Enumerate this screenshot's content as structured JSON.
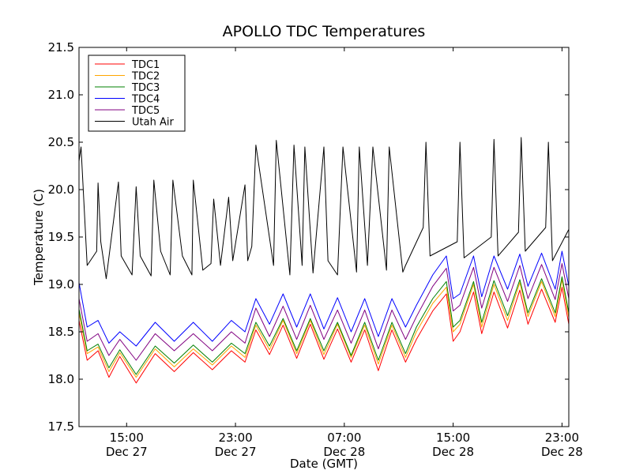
{
  "chart_data": {
    "type": "line",
    "title": "APOLLO TDC Temperatures",
    "xlabel": "Date (GMT)",
    "ylabel": "Temperature (C)",
    "ylim": [
      17.5,
      21.5
    ],
    "xlim_hours": [
      0,
      36
    ],
    "grid": false,
    "legend_position": "top-left",
    "y_ticks": [
      17.5,
      18.0,
      18.5,
      19.0,
      19.5,
      20.0,
      20.5,
      21.0,
      21.5
    ],
    "y_tick_labels": [
      "17.5",
      "18.0",
      "18.5",
      "19.0",
      "19.5",
      "20.0",
      "20.5",
      "21.0",
      "21.5"
    ],
    "x_ticks": [
      {
        "hour": 3.5,
        "time": "15:00",
        "date": "Dec 27"
      },
      {
        "hour": 11.5,
        "time": "23:00",
        "date": "Dec 27"
      },
      {
        "hour": 19.5,
        "time": "07:00",
        "date": "Dec 28"
      },
      {
        "hour": 27.5,
        "time": "15:00",
        "date": "Dec 28"
      },
      {
        "hour": 35.5,
        "time": "23:00",
        "date": "Dec 28"
      }
    ],
    "x_unit": "hours since Dec 27 11:30 GMT",
    "series": [
      {
        "name": "TDC1",
        "color": "#ff0000",
        "x": [
          0,
          0.6,
          1.4,
          2.2,
          3.0,
          4.2,
          5.6,
          7.0,
          8.4,
          9.8,
          11.2,
          12.2,
          13.0,
          14.0,
          15.0,
          16.0,
          17.0,
          18.0,
          19.0,
          20.0,
          21.0,
          22.0,
          23.0,
          24.0,
          24.8,
          26.0,
          27.0,
          27.5,
          28.0,
          29.0,
          29.6,
          30.5,
          31.5,
          32.4,
          33.0,
          34.0,
          35.0,
          35.5,
          36.0
        ],
        "values": [
          18.62,
          18.2,
          18.3,
          18.02,
          18.24,
          17.96,
          18.27,
          18.08,
          18.28,
          18.1,
          18.3,
          18.18,
          18.52,
          18.26,
          18.57,
          18.22,
          18.58,
          18.21,
          18.53,
          18.18,
          18.52,
          18.09,
          18.52,
          18.18,
          18.42,
          18.72,
          18.9,
          18.4,
          18.5,
          18.92,
          18.48,
          18.92,
          18.54,
          18.94,
          18.58,
          18.95,
          18.6,
          18.97,
          18.58
        ]
      },
      {
        "name": "TDC2",
        "color": "#ffa500",
        "x": [
          0,
          0.6,
          1.4,
          2.2,
          3.0,
          4.2,
          5.6,
          7.0,
          8.4,
          9.8,
          11.2,
          12.2,
          13.0,
          14.0,
          15.0,
          16.0,
          17.0,
          18.0,
          19.0,
          20.0,
          21.0,
          22.0,
          23.0,
          24.0,
          24.8,
          26.0,
          27.0,
          27.5,
          28.0,
          29.0,
          29.6,
          30.5,
          31.5,
          32.4,
          33.0,
          34.0,
          35.0,
          35.5,
          36.0
        ],
        "values": [
          18.7,
          18.27,
          18.34,
          18.08,
          18.28,
          18.02,
          18.32,
          18.13,
          18.32,
          18.15,
          18.35,
          18.23,
          18.57,
          18.31,
          18.62,
          18.27,
          18.62,
          18.26,
          18.58,
          18.23,
          18.57,
          18.16,
          18.57,
          18.23,
          18.5,
          18.8,
          18.97,
          18.5,
          18.58,
          19.0,
          18.55,
          19.0,
          18.62,
          19.02,
          18.66,
          19.03,
          18.66,
          19.05,
          18.65
        ]
      },
      {
        "name": "TDC3",
        "color": "#008000",
        "x": [
          0,
          0.6,
          1.4,
          2.2,
          3.0,
          4.2,
          5.6,
          7.0,
          8.4,
          9.8,
          11.2,
          12.2,
          13.0,
          14.0,
          15.0,
          16.0,
          17.0,
          18.0,
          19.0,
          20.0,
          21.0,
          22.0,
          23.0,
          24.0,
          24.8,
          26.0,
          27.0,
          27.5,
          28.0,
          29.0,
          29.6,
          30.5,
          31.5,
          32.4,
          33.0,
          34.0,
          35.0,
          35.5,
          36.0
        ],
        "values": [
          18.74,
          18.3,
          18.37,
          18.12,
          18.31,
          18.05,
          18.35,
          18.17,
          18.36,
          18.18,
          18.38,
          18.27,
          18.6,
          18.35,
          18.64,
          18.3,
          18.64,
          18.3,
          18.6,
          18.25,
          18.6,
          18.2,
          18.6,
          18.27,
          18.55,
          18.85,
          19.03,
          18.55,
          18.62,
          19.03,
          18.6,
          19.04,
          18.67,
          19.05,
          18.7,
          19.06,
          18.7,
          19.08,
          18.7
        ]
      },
      {
        "name": "TDC4",
        "color": "#0000ff",
        "x": [
          0,
          0.6,
          1.4,
          2.2,
          3.0,
          4.2,
          5.6,
          7.0,
          8.4,
          9.8,
          11.2,
          12.2,
          13.0,
          14.0,
          15.0,
          16.0,
          17.0,
          18.0,
          19.0,
          20.0,
          21.0,
          22.0,
          23.0,
          24.0,
          24.8,
          26.0,
          27.0,
          27.5,
          28.0,
          29.0,
          29.6,
          30.5,
          31.5,
          32.4,
          33.0,
          34.0,
          35.0,
          35.5,
          36.0
        ],
        "values": [
          19.02,
          18.55,
          18.62,
          18.38,
          18.5,
          18.35,
          18.6,
          18.4,
          18.6,
          18.4,
          18.62,
          18.5,
          18.85,
          18.58,
          18.9,
          18.55,
          18.9,
          18.53,
          18.86,
          18.5,
          18.85,
          18.45,
          18.85,
          18.55,
          18.78,
          19.1,
          19.3,
          18.85,
          18.9,
          19.3,
          18.87,
          19.3,
          18.95,
          19.32,
          18.98,
          19.33,
          18.95,
          19.35,
          18.98
        ]
      },
      {
        "name": "TDC5",
        "color": "#800080",
        "x": [
          0,
          0.6,
          1.4,
          2.2,
          3.0,
          4.2,
          5.6,
          7.0,
          8.4,
          9.8,
          11.2,
          12.2,
          13.0,
          14.0,
          15.0,
          16.0,
          17.0,
          18.0,
          19.0,
          20.0,
          21.0,
          22.0,
          23.0,
          24.0,
          24.8,
          26.0,
          27.0,
          27.5,
          28.0,
          29.0,
          29.6,
          30.5,
          31.5,
          32.4,
          33.0,
          34.0,
          35.0,
          35.5,
          36.0
        ],
        "values": [
          18.85,
          18.4,
          18.48,
          18.25,
          18.42,
          18.2,
          18.48,
          18.3,
          18.48,
          18.3,
          18.5,
          18.38,
          18.75,
          18.45,
          18.77,
          18.42,
          18.78,
          18.42,
          18.73,
          18.38,
          18.73,
          18.32,
          18.73,
          18.42,
          18.66,
          18.98,
          19.17,
          18.72,
          18.78,
          19.18,
          18.75,
          19.18,
          18.82,
          19.2,
          18.85,
          19.21,
          18.84,
          19.22,
          18.85
        ]
      },
      {
        "name": "Utah Air",
        "color": "#000000",
        "x": [
          0,
          0.15,
          0.6,
          1.3,
          1.4,
          1.6,
          2.0,
          2.9,
          3.1,
          3.9,
          4.2,
          4.5,
          5.3,
          5.5,
          6.0,
          6.7,
          6.9,
          7.6,
          8.3,
          8.4,
          9.1,
          9.7,
          9.9,
          10.4,
          11.0,
          11.3,
          12.2,
          12.4,
          12.7,
          13.0,
          14.3,
          14.5,
          15.5,
          15.8,
          16.4,
          16.6,
          17.2,
          18.0,
          18.3,
          19.0,
          19.4,
          20.4,
          20.6,
          21.2,
          21.6,
          22.6,
          22.8,
          23.8,
          24.0,
          25.3,
          25.5,
          25.8,
          27.8,
          28.0,
          28.3,
          30.3,
          30.5,
          30.8,
          32.3,
          32.5,
          32.8,
          34.3,
          34.5,
          34.8,
          36.0
        ],
        "values": [
          20.3,
          20.45,
          19.2,
          19.35,
          20.07,
          19.45,
          19.06,
          20.08,
          19.3,
          19.1,
          20.03,
          19.3,
          19.09,
          20.1,
          19.35,
          19.1,
          20.1,
          19.3,
          19.1,
          20.1,
          19.15,
          19.22,
          19.9,
          19.2,
          19.92,
          19.25,
          20.05,
          19.25,
          19.4,
          20.47,
          19.2,
          20.52,
          19.1,
          20.47,
          19.2,
          20.45,
          19.12,
          20.45,
          19.25,
          19.1,
          20.45,
          19.13,
          20.45,
          19.2,
          20.45,
          19.15,
          20.45,
          19.13,
          19.2,
          19.6,
          20.5,
          19.3,
          19.45,
          20.5,
          19.28,
          19.5,
          20.53,
          19.3,
          19.55,
          20.55,
          19.35,
          19.6,
          20.5,
          19.25,
          19.58
        ]
      }
    ]
  }
}
